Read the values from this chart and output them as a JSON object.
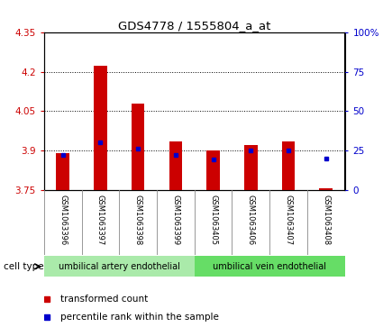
{
  "title": "GDS4778 / 1555804_a_at",
  "samples": [
    "GSM1063396",
    "GSM1063397",
    "GSM1063398",
    "GSM1063399",
    "GSM1063405",
    "GSM1063406",
    "GSM1063407",
    "GSM1063408"
  ],
  "transformed_count": [
    3.89,
    4.225,
    4.08,
    3.935,
    3.9,
    3.92,
    3.935,
    3.755
  ],
  "percentile_rank": [
    22,
    30,
    26,
    22,
    19,
    25,
    25,
    20
  ],
  "bar_bottom": 3.75,
  "ylim": [
    3.75,
    4.35
  ],
  "yticks_left": [
    3.75,
    3.9,
    4.05,
    4.2,
    4.35
  ],
  "yticks_right": [
    0,
    25,
    50,
    75,
    100
  ],
  "right_ylim": [
    0,
    100
  ],
  "bar_color": "#cc0000",
  "dot_color": "#0000cc",
  "cell_groups": [
    {
      "label": "umbilical artery endothelial",
      "start": 0,
      "end": 3,
      "color": "#aaeaaa"
    },
    {
      "label": "umbilical vein endothelial",
      "start": 4,
      "end": 7,
      "color": "#66dd66"
    }
  ],
  "legend_items": [
    {
      "label": "transformed count",
      "color": "#cc0000"
    },
    {
      "label": "percentile rank within the sample",
      "color": "#0000cc"
    }
  ],
  "cell_type_label": "cell type",
  "bg_color": "#ffffff",
  "tick_color_left": "#cc0000",
  "tick_color_right": "#0000cc",
  "bar_width": 0.35,
  "sample_bg": "#cccccc",
  "divider_color": "#888888"
}
